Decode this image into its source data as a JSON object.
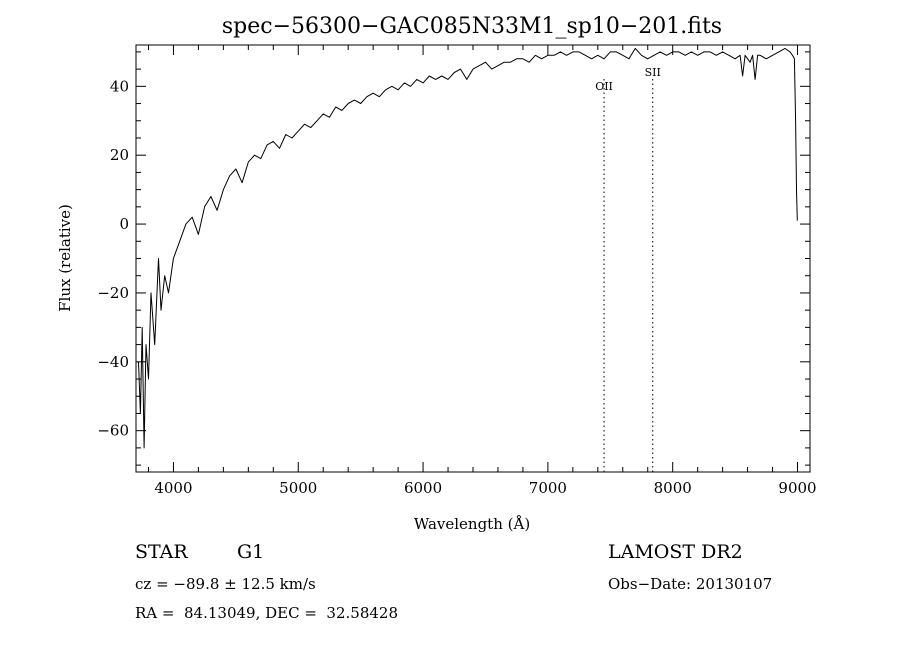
{
  "chart_data": {
    "type": "line",
    "title": "spec−56300−GAC085N33M1_sp10−201.fits",
    "xlabel": "Wavelength (Å)",
    "ylabel": "Flux (relative)",
    "xlim": [
      3700,
      9100
    ],
    "ylim": [
      -72,
      52
    ],
    "x_ticks": [
      4000,
      5000,
      6000,
      7000,
      8000,
      9000
    ],
    "x_tick_labels": [
      "4000",
      "5000",
      "6000",
      "7000",
      "8000",
      "9000"
    ],
    "y_ticks": [
      -60,
      -40,
      -20,
      0,
      20,
      40
    ],
    "y_tick_labels": [
      "−60",
      "−40",
      "−20",
      "0",
      "20",
      "40"
    ],
    "grid": false,
    "series": [
      {
        "x": [
          3720,
          3735,
          3750,
          3765,
          3780,
          3800,
          3820,
          3850,
          3880,
          3900,
          3930,
          3960,
          4000,
          4050,
          4100,
          4150,
          4200,
          4250,
          4300,
          4350,
          4400,
          4450,
          4500,
          4550,
          4600,
          4650,
          4700,
          4750,
          4800,
          4850,
          4900,
          4950,
          5000,
          5050,
          5100,
          5150,
          5200,
          5250,
          5300,
          5350,
          5400,
          5450,
          5500,
          5550,
          5600,
          5650,
          5700,
          5750,
          5800,
          5850,
          5900,
          5950,
          6000,
          6050,
          6100,
          6150,
          6200,
          6250,
          6300,
          6350,
          6400,
          6450,
          6500,
          6550,
          6600,
          6650,
          6700,
          6750,
          6800,
          6850,
          6900,
          6950,
          7000,
          7050,
          7100,
          7150,
          7200,
          7250,
          7300,
          7350,
          7400,
          7450,
          7500,
          7550,
          7600,
          7650,
          7700,
          7750,
          7800,
          7850,
          7900,
          7950,
          8000,
          8050,
          8100,
          8150,
          8200,
          8250,
          8300,
          8350,
          8400,
          8450,
          8500,
          8540,
          8560,
          8580,
          8600,
          8620,
          8640,
          8660,
          8680,
          8700,
          8750,
          8800,
          8850,
          8900,
          8940,
          8960,
          8975,
          8985,
          8992,
          8998
        ],
        "y": [
          -40,
          -55,
          -30,
          -65,
          -35,
          -45,
          -20,
          -35,
          -10,
          -25,
          -15,
          -20,
          -10,
          -5,
          0,
          2,
          -3,
          5,
          8,
          4,
          10,
          14,
          16,
          12,
          18,
          20,
          19,
          23,
          24,
          22,
          26,
          25,
          27,
          29,
          28,
          30,
          32,
          31,
          34,
          33,
          35,
          36,
          35,
          37,
          38,
          37,
          39,
          40,
          39,
          41,
          40,
          42,
          41,
          43,
          42,
          43,
          42,
          44,
          45,
          42,
          45,
          46,
          47,
          45,
          46,
          47,
          47,
          48,
          48,
          47,
          49,
          48,
          49,
          49,
          50,
          49,
          50,
          50,
          49,
          48,
          49,
          48,
          50,
          50,
          49,
          48,
          51,
          49,
          48,
          49,
          50,
          49,
          50,
          50,
          49,
          50,
          49,
          50,
          50,
          49,
          50,
          49,
          48,
          49,
          43,
          49,
          48,
          47,
          49,
          42,
          49,
          49,
          48,
          49,
          50,
          51,
          50,
          49,
          48,
          30,
          10,
          1
        ]
      }
    ],
    "annotations": [
      {
        "label": "OII",
        "x": 7450
      },
      {
        "label": "SII",
        "x": 7840
      }
    ]
  },
  "info": {
    "object_class": "STAR",
    "subclass": "G1",
    "survey": "LAMOST DR2",
    "redshift": "cz = −89.8 ± 12.5 km/s",
    "obs_date": "Obs−Date: 20130107",
    "coords": "RA =  84.13049, DEC =  32.58428"
  }
}
